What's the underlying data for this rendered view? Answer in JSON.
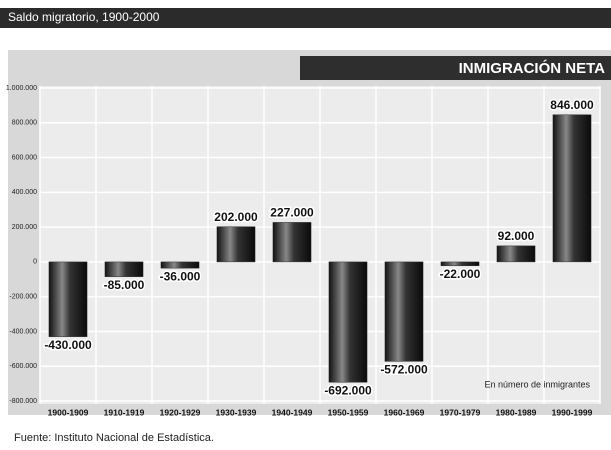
{
  "chart_data": {
    "type": "bar",
    "title": "Saldo migratorio, 1900-2000",
    "subtitle": "INMIGRACIÓN NETA",
    "annotation": "En número de inmigrantes",
    "source": "Fuente: Instituto Nacional de Estadística.",
    "categories": [
      "1900-1909",
      "1910-1919",
      "1920-1929",
      "1930-1939",
      "1940-1949",
      "1950-1959",
      "1960-1969",
      "1970-1979",
      "1980-1989",
      "1990-1999"
    ],
    "values": [
      -430000,
      -85000,
      -36000,
      202000,
      227000,
      -692000,
      -572000,
      -22000,
      92000,
      846000
    ],
    "value_labels": [
      "-430.000",
      "-85.000",
      "-36.000",
      "202.000",
      "227.000",
      "-692.000",
      "-572.000",
      "-22.000",
      "92.000",
      "846.000"
    ],
    "color": "#2a2a2a",
    "ylim": [
      -800000,
      1000000
    ],
    "yticks": [
      {
        "value": -800000,
        "label": "-800.000"
      },
      {
        "value": -600000,
        "label": "-600.000"
      },
      {
        "value": -400000,
        "label": "-400.000"
      },
      {
        "value": -200000,
        "label": "-200.000"
      },
      0,
      {
        "value": 200000,
        "label": "200.000"
      },
      {
        "value": 400000,
        "label": "400.000"
      },
      {
        "value": 600000,
        "label": "600.000"
      },
      {
        "value": 800000,
        "label": "800.000"
      },
      {
        "value": 1000000,
        "label": "1.000.000"
      }
    ],
    "grid": true
  }
}
